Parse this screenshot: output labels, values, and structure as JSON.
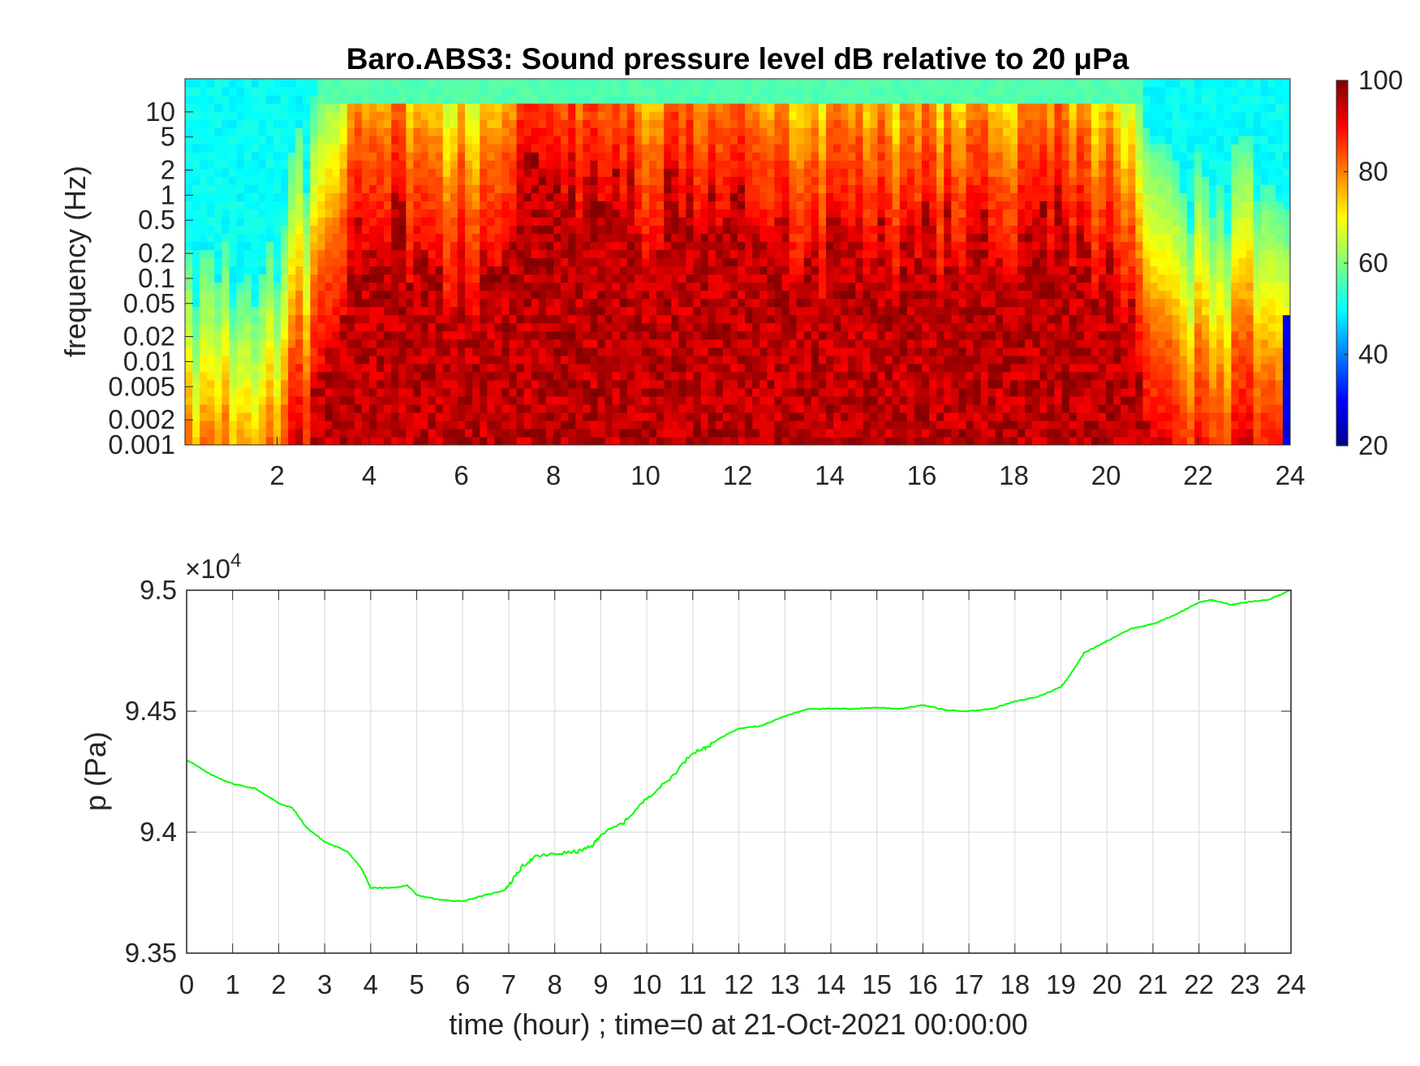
{
  "chart_data": [
    {
      "type": "heatmap",
      "title": "Baro.ABS3: Sound pressure level dB relative to 20 μPa",
      "ylabel": "frequency (Hz)",
      "xlabel": "",
      "xlim": [
        0,
        24
      ],
      "x_ticks": [
        "2",
        "4",
        "6",
        "8",
        "10",
        "12",
        "14",
        "16",
        "18",
        "20",
        "22",
        "24"
      ],
      "y_ticks": [
        "0.001",
        "0.002",
        "0.005",
        "0.01",
        "0.02",
        "0.05",
        "0.1",
        "0.2",
        "0.5",
        "1",
        "2",
        "5",
        "10"
      ],
      "y_scale": "log",
      "ylim": [
        0.001,
        25
      ],
      "colormap": "jet",
      "colorbar": {
        "ticks": [
          "20",
          "40",
          "60",
          "80",
          "100"
        ],
        "clim": [
          20,
          100
        ]
      },
      "level_profile": {
        "hours": [
          0,
          1,
          2,
          2.8,
          3.5,
          4,
          5,
          6,
          7,
          7.2,
          8,
          9,
          10,
          11,
          12,
          13,
          14,
          15,
          16,
          17,
          18,
          19,
          20,
          21,
          22,
          23,
          23.6,
          24
        ],
        "intensity": [
          0.28,
          0.25,
          0.3,
          0.55,
          0.72,
          0.92,
          0.85,
          0.75,
          0.8,
          1.0,
          0.98,
          0.9,
          0.88,
          0.9,
          0.88,
          0.85,
          0.83,
          0.82,
          0.83,
          0.84,
          0.85,
          0.86,
          0.78,
          0.55,
          0.4,
          0.42,
          0.45,
          0.4
        ]
      }
    },
    {
      "type": "line",
      "title": "",
      "xlabel": "time (hour) ; time=0 at 21-Oct-2021 00:00:00",
      "ylabel": "p (Pa)",
      "y_multiplier": "×10",
      "y_exponent": "4",
      "xlim": [
        0,
        24
      ],
      "ylim": [
        93500,
        95000
      ],
      "x_ticks": [
        "0",
        "1",
        "2",
        "3",
        "4",
        "5",
        "6",
        "7",
        "8",
        "9",
        "10",
        "11",
        "12",
        "13",
        "14",
        "15",
        "16",
        "17",
        "18",
        "19",
        "20",
        "21",
        "22",
        "23",
        "24"
      ],
      "y_ticks": [
        "9.35",
        "9.4",
        "9.45",
        "9.5"
      ],
      "grid": true,
      "line_color": "#00ff00",
      "series": [
        {
          "x": [
            0,
            0.5,
            1,
            1.5,
            2,
            2.3,
            2.6,
            3,
            3.5,
            3.8,
            4,
            4.5,
            4.8,
            5,
            5.5,
            6,
            6.5,
            6.9,
            7,
            7.3,
            7.6,
            8,
            8.5,
            8.8,
            9,
            9.5,
            10,
            10.5,
            11,
            11.3,
            11.6,
            12,
            12.5,
            13,
            13.5,
            14,
            14.5,
            15,
            15.5,
            16,
            16.5,
            17,
            17.5,
            18,
            18.5,
            19,
            19.2,
            19.5,
            20,
            20.5,
            21,
            21.5,
            22,
            22.3,
            22.7,
            23,
            23.5,
            24
          ],
          "y": [
            94300,
            94240,
            94200,
            94180,
            94120,
            94100,
            94020,
            93960,
            93920,
            93850,
            93770,
            93770,
            93780,
            93740,
            93720,
            93715,
            93740,
            93760,
            93780,
            93860,
            93900,
            93910,
            93920,
            93940,
            93990,
            94040,
            94140,
            94220,
            94330,
            94350,
            94390,
            94430,
            94440,
            94480,
            94510,
            94510,
            94510,
            94515,
            94510,
            94525,
            94505,
            94500,
            94510,
            94540,
            94560,
            94600,
            94650,
            94740,
            94790,
            94840,
            94860,
            94900,
            94950,
            94960,
            94940,
            94950,
            94960,
            95000
          ]
        }
      ]
    }
  ]
}
